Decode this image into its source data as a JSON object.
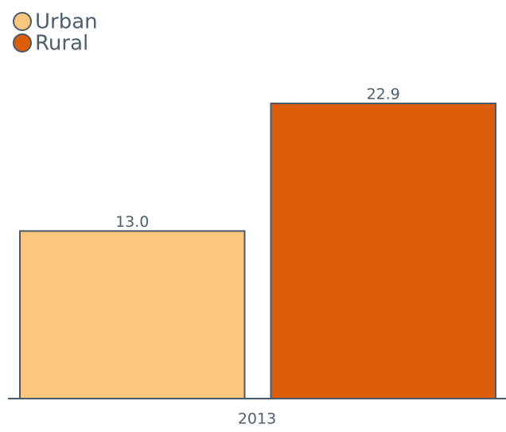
{
  "chart_data": {
    "type": "bar",
    "categories": [
      "2013"
    ],
    "series": [
      {
        "name": "Urban",
        "color": "#fcc77c",
        "values": [
          13.0
        ],
        "value_labels": [
          "13.0"
        ]
      },
      {
        "name": "Rural",
        "color": "#dd5e0a",
        "values": [
          22.9
        ],
        "value_labels": [
          "22.9"
        ]
      }
    ],
    "ylim": [
      0,
      25
    ]
  }
}
